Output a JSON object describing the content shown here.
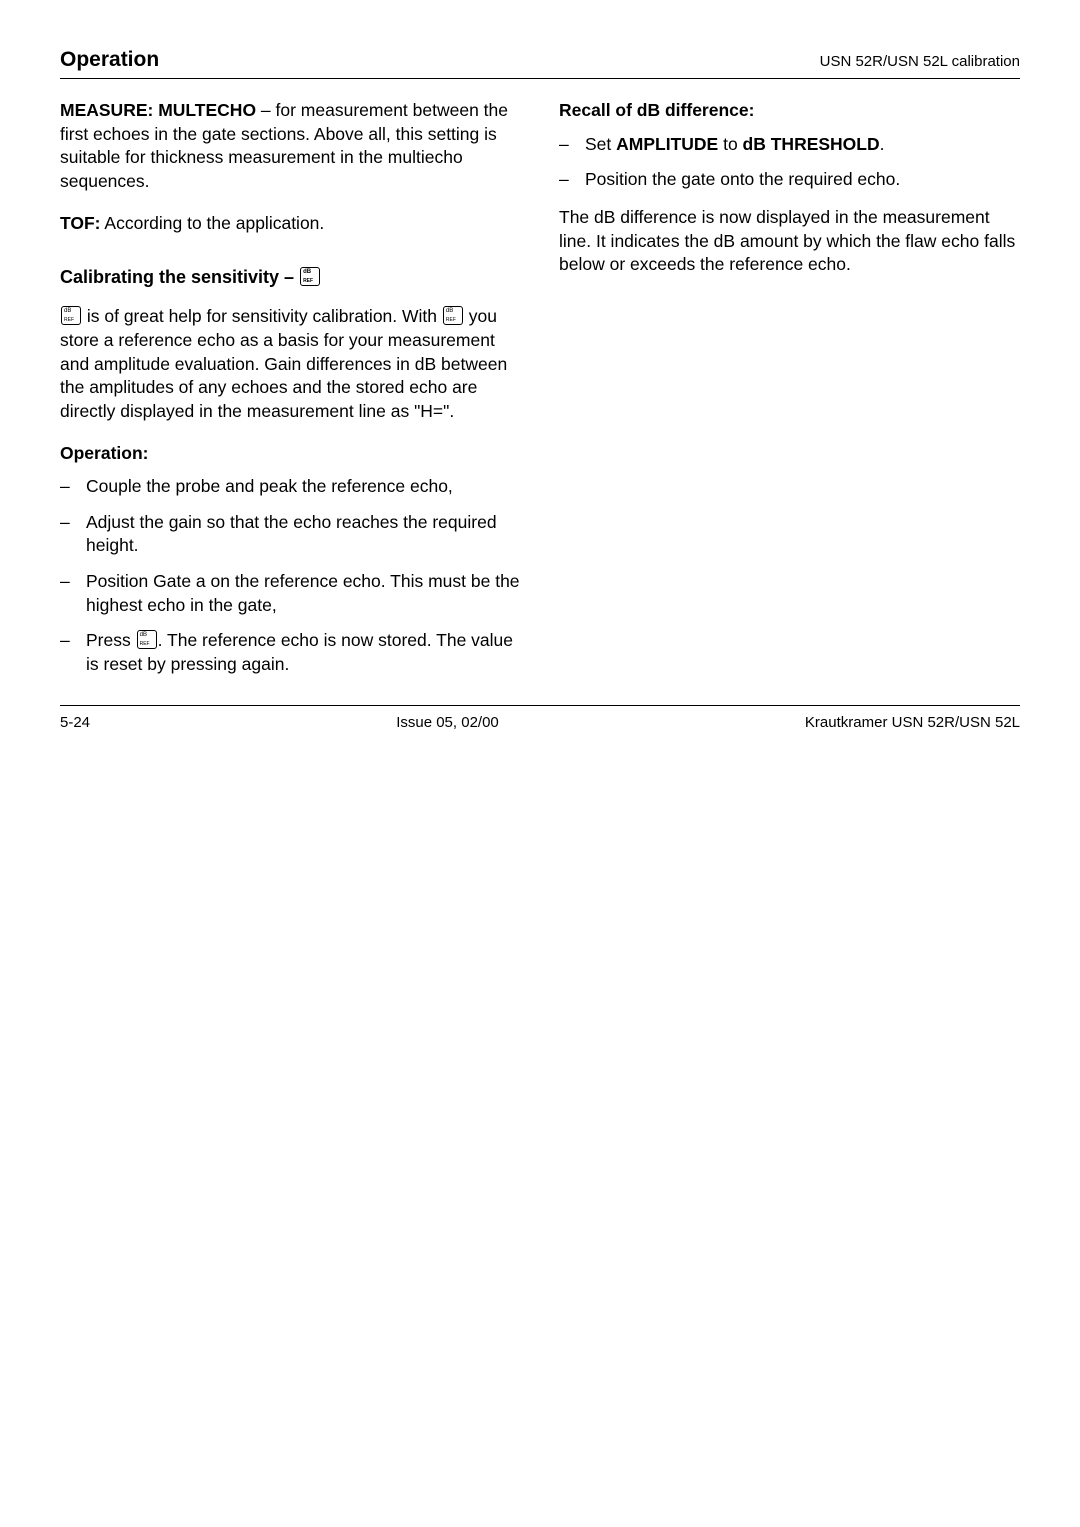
{
  "header": {
    "left": "Operation",
    "right": "USN 52R/USN 52L calibration"
  },
  "leftColumn": {
    "measurePara": {
      "boldLead": "MEASURE: MULTECHO",
      "rest": " – for measurement between the first echoes in the gate sections. Above all, this setting is suitable for thickness measurement in the multiecho sequences."
    },
    "tofPara": {
      "boldLead": "TOF:",
      "rest": " According to the application."
    },
    "calibHeadingPrefix": "Calibrating the sensitivity – ",
    "calibPara1a": " is of great help for sensitivity calibration. With ",
    "calibPara1b": " you store a reference echo as a basis for your measurement and amplitude evaluation. Gain differences in dB between the amplitudes of any echoes and the stored echo are directly displayed in the measurement line as \"H=\".",
    "operationHeading": "Operation:",
    "opItems": [
      "Couple the probe and peak the reference echo,",
      "Adjust the gain so that the echo reaches the required height.",
      "Position Gate a on the reference echo. This must be the highest echo in the gate,"
    ],
    "opItem4a": "Press ",
    "opItem4b": ". The reference echo is now stored. The value is reset by pressing again."
  },
  "rightColumn": {
    "recallHeading": "Recall of dB difference:",
    "recallItem1a": "Set ",
    "recallItem1Bold1": "AMPLITUDE",
    "recallItem1Mid": " to ",
    "recallItem1Bold2": "dB THRESHOLD",
    "recallItem1End": ".",
    "recallItem2": "Position the gate onto the required echo.",
    "recallPara": "The dB difference is now displayed in the measurement line. It indicates the dB amount by which the flaw echo falls below or exceeds the reference echo."
  },
  "footer": {
    "left": "5-24",
    "center": "Issue 05, 02/00",
    "right": "Krautkramer USN 52R/USN 52L"
  }
}
